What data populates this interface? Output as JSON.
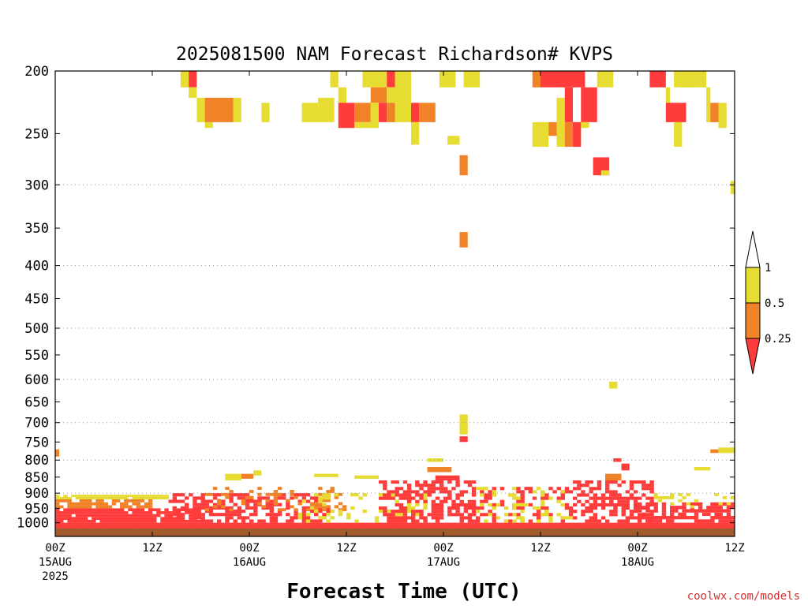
{
  "chart_data": {
    "type": "heatmap",
    "title": "2025081500 NAM Forecast Richardson# KVPS",
    "xlabel": "Forecast Time (UTC)",
    "ylabel": "",
    "credit": "coolwx.com/models",
    "x_range_hours": [
      0,
      84
    ],
    "y_axis": {
      "scale": "log-pressure",
      "range_hPa": [
        200,
        1050
      ],
      "ticks": [
        "200",
        "250",
        "300",
        "350",
        "400",
        "450",
        "500",
        "550",
        "600",
        "650",
        "700",
        "750",
        "800",
        "850",
        "900",
        "950",
        "1000"
      ],
      "gridlines_hPa": [
        300,
        400,
        500,
        600,
        700,
        800,
        900
      ]
    },
    "x_ticks": [
      {
        "hour": 0,
        "line1": "00Z",
        "line2": "15AUG",
        "line3": "2025"
      },
      {
        "hour": 12,
        "line1": "12Z",
        "line2": "",
        "line3": ""
      },
      {
        "hour": 24,
        "line1": "00Z",
        "line2": "16AUG",
        "line3": ""
      },
      {
        "hour": 36,
        "line1": "12Z",
        "line2": "",
        "line3": ""
      },
      {
        "hour": 48,
        "line1": "00Z",
        "line2": "17AUG",
        "line3": ""
      },
      {
        "hour": 60,
        "line1": "12Z",
        "line2": "",
        "line3": ""
      },
      {
        "hour": 72,
        "line1": "00Z",
        "line2": "18AUG",
        "line3": ""
      },
      {
        "hour": 84,
        "line1": "12Z",
        "line2": "",
        "line3": ""
      }
    ],
    "legend": {
      "placement": "right",
      "labels": [
        "1",
        "0.5",
        "0.25"
      ],
      "bins": [
        {
          "range": "<0.25",
          "color": "#ff3c3c"
        },
        {
          "range": "0.25-0.5",
          "color": "#f08228"
        },
        {
          "range": "0.5-1",
          "color": "#e6dc32"
        },
        {
          "range": ">1",
          "color": "#ffffff"
        }
      ]
    },
    "colors": {
      "low": "#ff3c3c",
      "mid": "#f08228",
      "high": "#e6dc32",
      "ground": "#a05a2c"
    },
    "ground_pressure_hPa": 1020,
    "cells": [
      {
        "h0": 15.5,
        "h1": 16.5,
        "p0": 200,
        "p1": 212,
        "c": "high"
      },
      {
        "h0": 16.5,
        "h1": 17.5,
        "p0": 200,
        "p1": 212,
        "c": "low"
      },
      {
        "h0": 16.5,
        "h1": 17.5,
        "p0": 212,
        "p1": 220,
        "c": "high"
      },
      {
        "h0": 17.5,
        "h1": 18.5,
        "p0": 220,
        "p1": 240,
        "c": "high"
      },
      {
        "h0": 18.5,
        "h1": 22,
        "p0": 220,
        "p1": 240,
        "c": "mid"
      },
      {
        "h0": 22,
        "h1": 23,
        "p0": 220,
        "p1": 240,
        "c": "high"
      },
      {
        "h0": 18.5,
        "h1": 19.5,
        "p0": 240,
        "p1": 245,
        "c": "high"
      },
      {
        "h0": 25.5,
        "h1": 26.5,
        "p0": 224,
        "p1": 240,
        "c": "high"
      },
      {
        "h0": 30.5,
        "h1": 32.5,
        "p0": 224,
        "p1": 240,
        "c": "high"
      },
      {
        "h0": 32.5,
        "h1": 34.5,
        "p0": 220,
        "p1": 240,
        "c": "high"
      },
      {
        "h0": 34,
        "h1": 35,
        "p0": 200,
        "p1": 212,
        "c": "high"
      },
      {
        "h0": 35,
        "h1": 36,
        "p0": 212,
        "p1": 224,
        "c": "high"
      },
      {
        "h0": 35,
        "h1": 37,
        "p0": 224,
        "p1": 245,
        "c": "low"
      },
      {
        "h0": 37,
        "h1": 39,
        "p0": 224,
        "p1": 240,
        "c": "mid"
      },
      {
        "h0": 37,
        "h1": 39,
        "p0": 240,
        "p1": 245,
        "c": "high"
      },
      {
        "h0": 38,
        "h1": 41,
        "p0": 200,
        "p1": 212,
        "c": "high"
      },
      {
        "h0": 39,
        "h1": 41,
        "p0": 212,
        "p1": 224,
        "c": "mid"
      },
      {
        "h0": 39,
        "h1": 40,
        "p0": 224,
        "p1": 245,
        "c": "high"
      },
      {
        "h0": 40,
        "h1": 41,
        "p0": 224,
        "p1": 240,
        "c": "low"
      },
      {
        "h0": 41,
        "h1": 42,
        "p0": 200,
        "p1": 212,
        "c": "low"
      },
      {
        "h0": 41,
        "h1": 42,
        "p0": 212,
        "p1": 224,
        "c": "high"
      },
      {
        "h0": 41,
        "h1": 42,
        "p0": 224,
        "p1": 240,
        "c": "mid"
      },
      {
        "h0": 42,
        "h1": 44,
        "p0": 200,
        "p1": 224,
        "c": "high"
      },
      {
        "h0": 42,
        "h1": 44,
        "p0": 224,
        "p1": 240,
        "c": "high"
      },
      {
        "h0": 44,
        "h1": 45,
        "p0": 224,
        "p1": 240,
        "c": "low"
      },
      {
        "h0": 45,
        "h1": 47,
        "p0": 224,
        "p1": 240,
        "c": "mid"
      },
      {
        "h0": 44,
        "h1": 45,
        "p0": 240,
        "p1": 260,
        "c": "high"
      },
      {
        "h0": 47.5,
        "h1": 49.5,
        "p0": 200,
        "p1": 212,
        "c": "high"
      },
      {
        "h0": 48.5,
        "h1": 50,
        "p0": 252,
        "p1": 260,
        "c": "high"
      },
      {
        "h0": 50,
        "h1": 51,
        "p0": 270,
        "p1": 290,
        "c": "mid"
      },
      {
        "h0": 50.5,
        "h1": 52.5,
        "p0": 200,
        "p1": 212,
        "c": "high"
      },
      {
        "h0": 59,
        "h1": 60,
        "p0": 200,
        "p1": 212,
        "c": "mid"
      },
      {
        "h0": 60,
        "h1": 65.5,
        "p0": 200,
        "p1": 212,
        "c": "low"
      },
      {
        "h0": 59,
        "h1": 61,
        "p0": 240,
        "p1": 262,
        "c": "high"
      },
      {
        "h0": 61,
        "h1": 62,
        "p0": 240,
        "p1": 252,
        "c": "mid"
      },
      {
        "h0": 62,
        "h1": 63,
        "p0": 220,
        "p1": 262,
        "c": "high"
      },
      {
        "h0": 63,
        "h1": 64,
        "p0": 212,
        "p1": 240,
        "c": "low"
      },
      {
        "h0": 63,
        "h1": 65,
        "p0": 240,
        "p1": 262,
        "c": "mid"
      },
      {
        "h0": 64,
        "h1": 65,
        "p0": 240,
        "p1": 262,
        "c": "low"
      },
      {
        "h0": 65,
        "h1": 67,
        "p0": 212,
        "p1": 240,
        "c": "low"
      },
      {
        "h0": 65,
        "h1": 66,
        "p0": 240,
        "p1": 245,
        "c": "high"
      },
      {
        "h0": 67,
        "h1": 69,
        "p0": 200,
        "p1": 212,
        "c": "high"
      },
      {
        "h0": 66.5,
        "h1": 68.5,
        "p0": 272,
        "p1": 290,
        "c": "low"
      },
      {
        "h0": 67.5,
        "h1": 68.5,
        "p0": 285,
        "p1": 290,
        "c": "high"
      },
      {
        "h0": 73.5,
        "h1": 75.5,
        "p0": 200,
        "p1": 212,
        "c": "low"
      },
      {
        "h0": 75.5,
        "h1": 76,
        "p0": 212,
        "p1": 240,
        "c": "high"
      },
      {
        "h0": 75.5,
        "h1": 78,
        "p0": 224,
        "p1": 240,
        "c": "low"
      },
      {
        "h0": 76.5,
        "h1": 78.5,
        "p0": 200,
        "p1": 212,
        "c": "high"
      },
      {
        "h0": 77.5,
        "h1": 79.5,
        "p0": 200,
        "p1": 212,
        "c": "high"
      },
      {
        "h0": 79.5,
        "h1": 80.5,
        "p0": 200,
        "p1": 212,
        "c": "high"
      },
      {
        "h0": 80.5,
        "h1": 81,
        "p0": 212,
        "p1": 240,
        "c": "high"
      },
      {
        "h0": 81,
        "h1": 82,
        "p0": 224,
        "p1": 240,
        "c": "mid"
      },
      {
        "h0": 82,
        "h1": 83,
        "p0": 224,
        "p1": 245,
        "c": "high"
      },
      {
        "h0": 76.5,
        "h1": 77.5,
        "p0": 240,
        "p1": 262,
        "c": "high"
      },
      {
        "h0": 83.5,
        "h1": 84,
        "p0": 296,
        "p1": 310,
        "c": "high"
      },
      {
        "h0": 50,
        "h1": 51,
        "p0": 355,
        "p1": 375,
        "c": "mid"
      },
      {
        "h0": 68.5,
        "h1": 69.5,
        "p0": 605,
        "p1": 620,
        "c": "high"
      },
      {
        "h0": 50,
        "h1": 51,
        "p0": 680,
        "p1": 730,
        "c": "high"
      },
      {
        "h0": 50,
        "h1": 51,
        "p0": 735,
        "p1": 750,
        "c": "low"
      },
      {
        "h0": 82,
        "h1": 84,
        "p0": 765,
        "p1": 780,
        "c": "high"
      },
      {
        "h0": 81,
        "h1": 82,
        "p0": 770,
        "p1": 780,
        "c": "mid"
      },
      {
        "h0": 79,
        "h1": 81,
        "p0": 820,
        "p1": 830,
        "c": "high"
      },
      {
        "h0": 0,
        "h1": 0.5,
        "p0": 770,
        "p1": 790,
        "c": "mid"
      },
      {
        "h0": 21,
        "h1": 23,
        "p0": 840,
        "p1": 860,
        "c": "high"
      },
      {
        "h0": 23,
        "h1": 24.5,
        "p0": 840,
        "p1": 855,
        "c": "mid"
      },
      {
        "h0": 24.5,
        "h1": 25.5,
        "p0": 830,
        "p1": 845,
        "c": "high"
      },
      {
        "h0": 32,
        "h1": 35,
        "p0": 840,
        "p1": 850,
        "c": "high"
      },
      {
        "h0": 37,
        "h1": 40,
        "p0": 845,
        "p1": 855,
        "c": "high"
      },
      {
        "h0": 46,
        "h1": 48,
        "p0": 795,
        "p1": 805,
        "c": "high"
      },
      {
        "h0": 46,
        "h1": 49,
        "p0": 820,
        "p1": 835,
        "c": "mid"
      },
      {
        "h0": 47,
        "h1": 50,
        "p0": 845,
        "p1": 860,
        "c": "low"
      },
      {
        "h0": 69,
        "h1": 70,
        "p0": 795,
        "p1": 805,
        "c": "low"
      },
      {
        "h0": 68,
        "h1": 70,
        "p0": 840,
        "p1": 860,
        "c": "mid"
      },
      {
        "h0": 70,
        "h1": 71,
        "p0": 810,
        "p1": 830,
        "c": "low"
      }
    ],
    "bands": [
      {
        "h0": 0,
        "h1": 84,
        "p0": 1000,
        "p1": 1020,
        "c": "low",
        "density": 1.0
      },
      {
        "h0": 0,
        "h1": 14,
        "p0": 905,
        "p1": 920,
        "c": "high",
        "density": 0.9
      },
      {
        "h0": 0,
        "h1": 12,
        "p0": 920,
        "p1": 950,
        "c": "mid",
        "density": 0.8
      },
      {
        "h0": 0,
        "h1": 18,
        "p0": 950,
        "p1": 1000,
        "c": "low",
        "density": 0.9
      },
      {
        "h0": 14,
        "h1": 34,
        "p0": 900,
        "p1": 1000,
        "c": "low",
        "density": 0.55
      },
      {
        "h0": 18,
        "h1": 36,
        "p0": 880,
        "p1": 960,
        "c": "mid",
        "density": 0.2
      },
      {
        "h0": 30,
        "h1": 46,
        "p0": 900,
        "p1": 1000,
        "c": "high",
        "density": 0.25
      },
      {
        "h0": 40,
        "h1": 52,
        "p0": 860,
        "p1": 1000,
        "c": "low",
        "density": 0.55
      },
      {
        "h0": 52,
        "h1": 64,
        "p0": 880,
        "p1": 1000,
        "c": "low",
        "density": 0.3
      },
      {
        "h0": 52,
        "h1": 64,
        "p0": 880,
        "p1": 1000,
        "c": "high",
        "density": 0.2
      },
      {
        "h0": 64,
        "h1": 74,
        "p0": 860,
        "p1": 1000,
        "c": "low",
        "density": 0.6
      },
      {
        "h0": 72,
        "h1": 84,
        "p0": 930,
        "p1": 1000,
        "c": "low",
        "density": 0.7
      },
      {
        "h0": 74,
        "h1": 84,
        "p0": 900,
        "p1": 960,
        "c": "high",
        "density": 0.15
      }
    ]
  }
}
